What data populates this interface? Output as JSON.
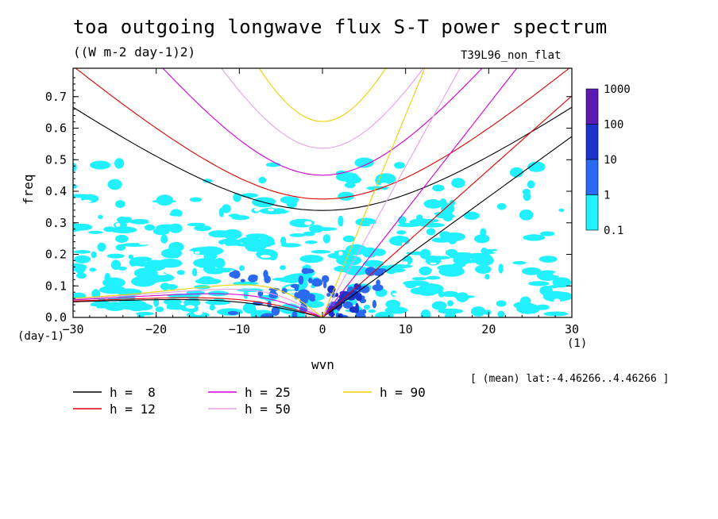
{
  "title": "toa outgoing longwave flux S-T power spectrum",
  "subtitle": "((W m-2 day-1)2)",
  "run_label": "T39L96_non_flat",
  "lat_note": "[ (mean) lat:-4.46266..4.46266 ]",
  "chart_data": {
    "type": "heatmap",
    "title": "toa outgoing longwave flux S-T power spectrum",
    "subtitle": "((W m-2 day-1)2)",
    "xlabel": "wvn",
    "ylabel": "freq",
    "x_unit": "(1)",
    "y_unit": "(day-1)",
    "xlim": [
      -30,
      30
    ],
    "ylim": [
      0,
      0.79
    ],
    "x_ticks": [
      -30,
      -20,
      -10,
      0,
      10,
      20,
      30
    ],
    "x_tick_labels": [
      "−30",
      "−20",
      "−10",
      "0",
      "10",
      "20",
      "30"
    ],
    "y_ticks": [
      0.0,
      0.1,
      0.2,
      0.3,
      0.4,
      0.5,
      0.6,
      0.7
    ],
    "y_tick_labels": [
      "0.0",
      "0.1",
      "0.2",
      "0.3",
      "0.4",
      "0.5",
      "0.6",
      "0.7"
    ],
    "colorbar": {
      "levels": [
        "1000",
        "100",
        "10",
        "1",
        "0.1"
      ],
      "colors": [
        "#5c1ab0",
        "#1a33c8",
        "#2a6af0",
        "#21f0ff"
      ]
    },
    "contour_regions": [
      {
        "level": "0.1-1",
        "color": "#21f0ff",
        "x_range": [
          -30,
          24
        ],
        "freq_range": [
          0.0,
          0.5
        ]
      },
      {
        "level": "1-10",
        "color": "#2a6af0",
        "x_range": [
          -11,
          7
        ],
        "freq_range": [
          0.0,
          0.17
        ]
      },
      {
        "level": "10-100",
        "color": "#1a33c8",
        "x_range": [
          0,
          4
        ],
        "freq_range": [
          0.0,
          0.1
        ]
      }
    ],
    "dispersion_curves": [
      {
        "name": "h =  8",
        "color": "#000000",
        "h": 8
      },
      {
        "name": "h = 12",
        "color": "#e00000",
        "h": 12
      },
      {
        "name": "h = 25",
        "color": "#d400d4",
        "h": 25
      },
      {
        "name": "h = 50",
        "color": "#e6a0e6",
        "h": 50
      },
      {
        "name": "h = 90",
        "color": "#f0d000",
        "h": 90
      }
    ],
    "legend_placement": "bottom"
  }
}
